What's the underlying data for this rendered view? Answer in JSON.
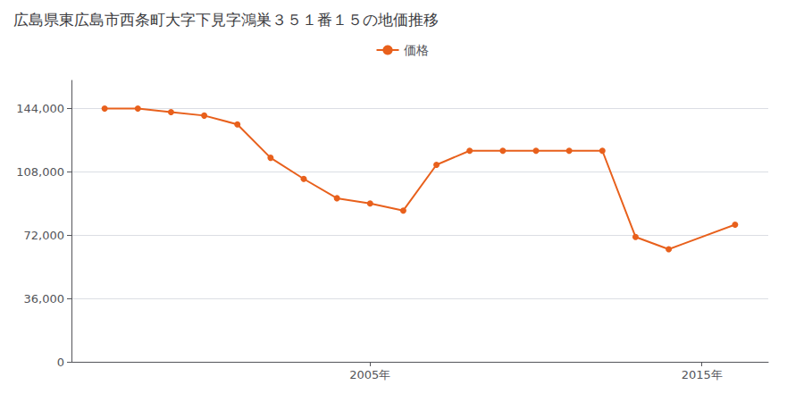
{
  "chart_data": {
    "type": "line",
    "title": "広島県東広島市西条町大字下見字鴻巣３５１番１５の地価推移",
    "x": [
      1997,
      1998,
      1999,
      2000,
      2001,
      2002,
      2003,
      2004,
      2005,
      2006,
      2007,
      2008,
      2009,
      2010,
      2011,
      2012,
      2013,
      2014,
      2016
    ],
    "series": [
      {
        "name": "価格",
        "color": "#e8601c",
        "marker": "circle",
        "values": [
          144000,
          144000,
          142000,
          140000,
          135000,
          116000,
          104000,
          93000,
          90000,
          86000,
          112000,
          120000,
          120000,
          120000,
          120000,
          120000,
          71000,
          64000,
          78000
        ]
      }
    ],
    "xlim": [
      1996,
      2017
    ],
    "xticks": [
      {
        "value": 2005,
        "label": "2005年"
      },
      {
        "value": 2015,
        "label": "2015年"
      }
    ],
    "ylim": [
      0,
      160000
    ],
    "yticks": [
      0,
      {
        "value": 36000,
        "label": "36,000"
      },
      {
        "value": 72000,
        "label": "72,000"
      },
      {
        "value": 108000,
        "label": "108,000"
      },
      {
        "value": 144000,
        "label": "144,000"
      }
    ],
    "grid": true,
    "legend": "top"
  }
}
